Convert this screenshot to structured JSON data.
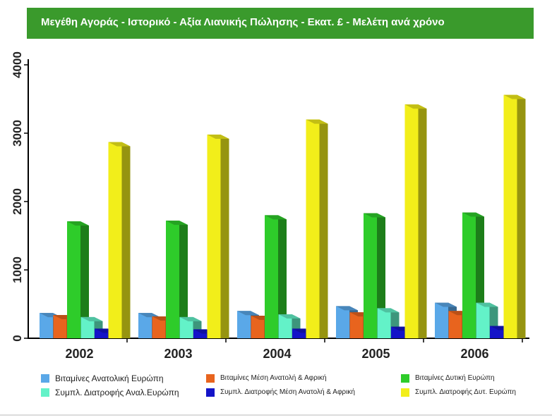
{
  "header": {
    "title": "Μεγέθη Αγοράς - Ιστορικό - Αξία Λιανικής Πώλησης - Εκατ. £ - Μελέτη ανά χρόνο",
    "background": "#3a9a2c"
  },
  "chart_data": {
    "type": "bar",
    "style": "3d-clustered",
    "title": "Μεγέθη Αγοράς - Ιστορικό - Αξία Λιανικής Πώλησης - Εκατ. £ - Μελέτη ανά χρόνο",
    "categories": [
      "2002",
      "2003",
      "2004",
      "2005",
      "2006"
    ],
    "ylim": [
      0,
      4000
    ],
    "yticks": [
      0,
      1000,
      2000,
      3000,
      4000
    ],
    "xlabel": "",
    "ylabel": "",
    "grid": false,
    "legend_position": "bottom",
    "series": [
      {
        "name": "Βιταμίνες Ανατολική Ευρώπη",
        "color": "#5aa8e8",
        "values": [
          370,
          370,
          400,
          470,
          520
        ]
      },
      {
        "name": "Βιταμίνες Μέση Ανατολή & Αφρική",
        "color": "#e8641e",
        "values": [
          340,
          320,
          330,
          380,
          400
        ]
      },
      {
        "name": "Βιταμίνες Δυτική Ευρώπη",
        "color": "#2ecc2a",
        "values": [
          1710,
          1720,
          1800,
          1830,
          1840
        ]
      },
      {
        "name": "Συμπλ. Διατροφής Αναλ.Ευρώπη",
        "color": "#63f2c8",
        "values": [
          310,
          310,
          350,
          440,
          520
        ]
      },
      {
        "name": "Συμπλ. Διατροφής Μέση Ανατολή & Αφρική",
        "color": "#1414c8",
        "values": [
          140,
          130,
          140,
          170,
          180
        ]
      },
      {
        "name": "Συμπλ. Διατροφής Δυτ. Ευρώπη",
        "color": "#f2ee1a",
        "values": [
          2870,
          2980,
          3200,
          3420,
          3560
        ]
      }
    ]
  },
  "legend": {
    "items": [
      {
        "label": "Βιταμίνες Ανατολική Ευρώπη",
        "color": "#5aa8e8"
      },
      {
        "label": "Βιταμίνες Μέση Ανατολή & Αφρική",
        "color": "#e8641e"
      },
      {
        "label": "Βιταμίνες Δυτική Ευρώπη",
        "color": "#2ecc2a"
      },
      {
        "label": "Συμπλ. Διατροφής Αναλ.Ευρώπη",
        "color": "#63f2c8"
      },
      {
        "label": "Συμπλ. Διατροφής Μέση Ανατολή & Αφρική",
        "color": "#1414c8"
      },
      {
        "label": "Συμπλ. Διατροφής Δυτ. Ευρώπη",
        "color": "#f2ee1a"
      }
    ]
  }
}
